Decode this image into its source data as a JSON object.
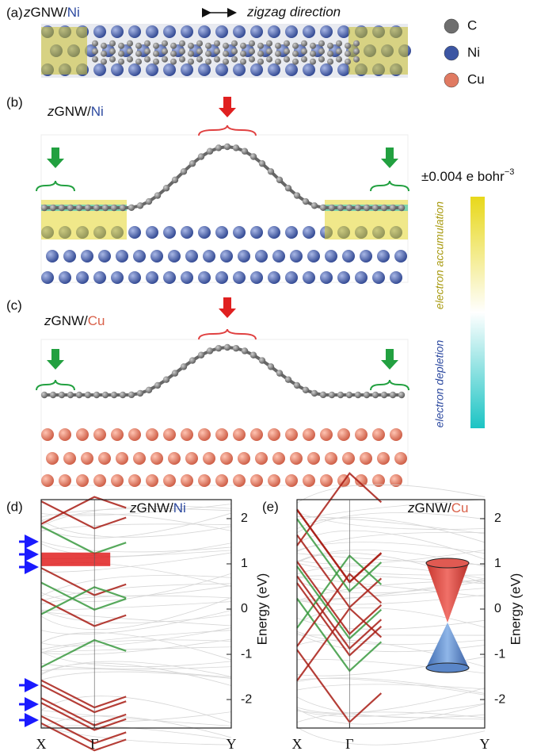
{
  "panels": [
    {
      "label": "(a)",
      "title_z": "z",
      "title_main": "GNW/",
      "title_metal": "Ni",
      "annotation": "zigzag direction"
    },
    {
      "label": "(b)",
      "title_z": "z",
      "title_main": "GNW/",
      "title_metal": "Ni"
    },
    {
      "label": "(c)",
      "title_z": "z",
      "title_main": "GNW/",
      "title_metal": "Cu"
    }
  ],
  "legend": [
    {
      "label": "C",
      "color": "#6e6e6e"
    },
    {
      "label": "Ni",
      "color": "#3c56a3"
    },
    {
      "label": "Cu",
      "color": "#e07a62"
    }
  ],
  "colorbar": {
    "label": "±0.004 e bohr",
    "label_sup": "−3",
    "top_label": "electron accumulation",
    "bottom_label": "electron depletion"
  },
  "band_plots": [
    {
      "label": "(d)",
      "title_z": "z",
      "title_main": "GNW/",
      "title_metal": "Ni",
      "ylabel": "Energy (eV)",
      "ylim": [
        -2.63,
        2.42
      ],
      "yticks": [
        -2,
        -1,
        0,
        1,
        2
      ],
      "kpoints": [
        "X",
        "Γ",
        "Y"
      ]
    },
    {
      "label": "(e)",
      "title_z": "z",
      "title_main": "GNW/",
      "title_metal": "Cu",
      "ylabel": "Energy (eV)",
      "ylim": [
        -2.63,
        2.42
      ],
      "yticks": [
        -2,
        -1,
        0,
        1,
        2
      ],
      "kpoints": [
        "X",
        "Γ",
        "Y"
      ]
    }
  ]
}
